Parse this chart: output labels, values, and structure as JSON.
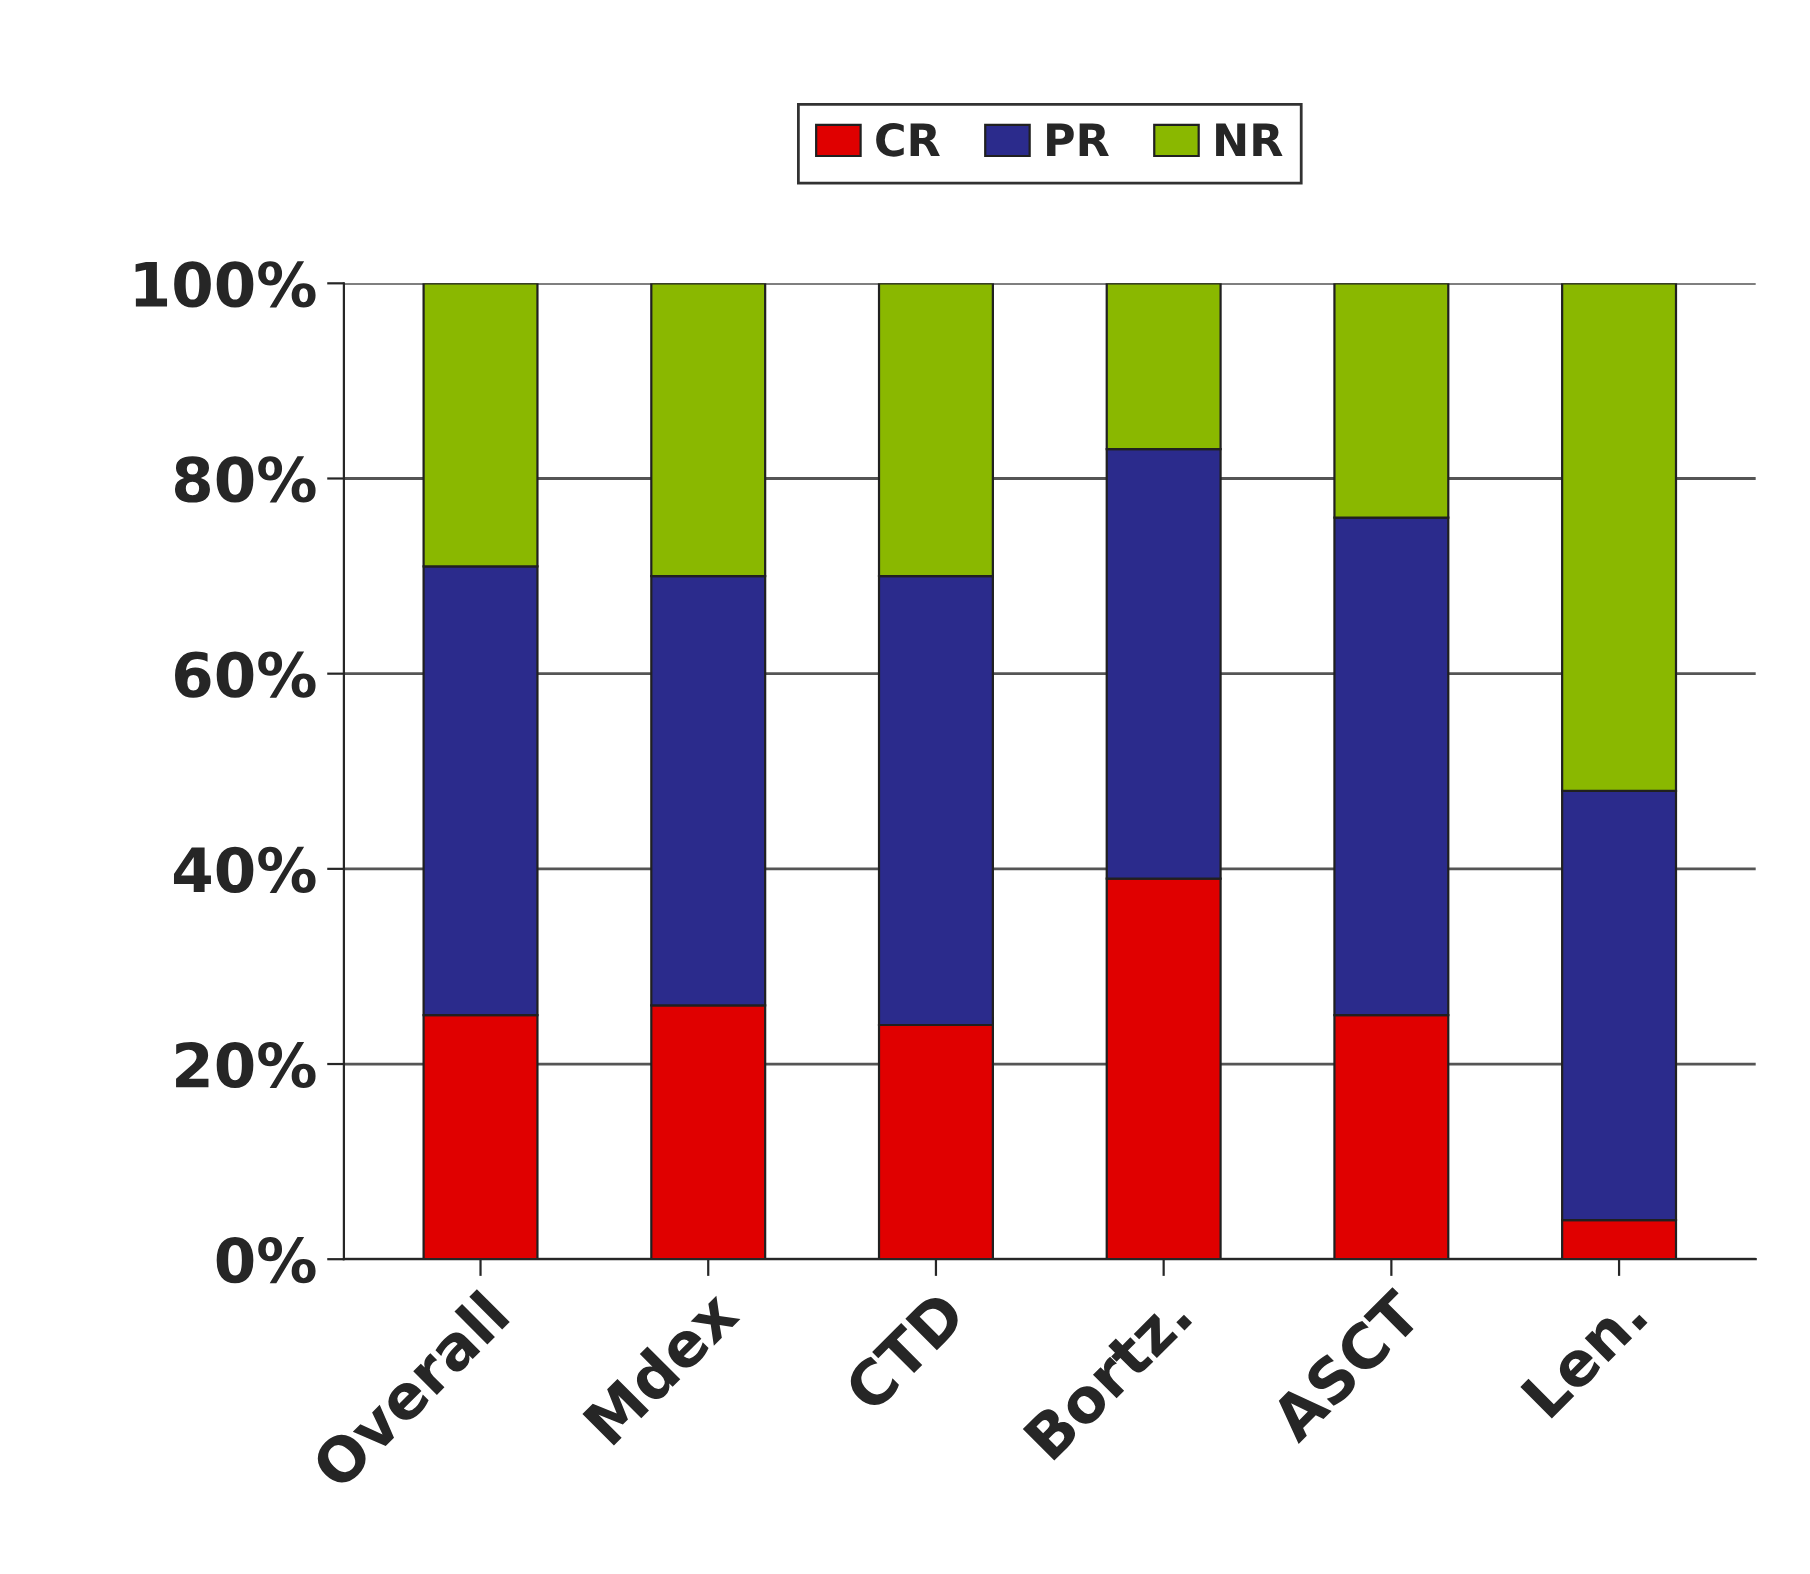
{
  "chart_data": {
    "type": "bar",
    "stacked": true,
    "categories": [
      "Overall",
      "Mdex",
      "CTD",
      "Bortz.",
      "ASCT",
      "Len."
    ],
    "series": [
      {
        "name": "CR",
        "color": "#e00000",
        "values": [
          25,
          26,
          24,
          39,
          25,
          4
        ]
      },
      {
        "name": "PR",
        "color": "#2b2b8c",
        "values": [
          46,
          44,
          46,
          44,
          51,
          44
        ]
      },
      {
        "name": "NR",
        "color": "#8ab800",
        "values": [
          29,
          30,
          30,
          17,
          24,
          52
        ]
      }
    ],
    "ylim": [
      0,
      100
    ],
    "yticks": [
      {
        "value": 0,
        "label": "0%"
      },
      {
        "value": 20,
        "label": "20%"
      },
      {
        "value": 40,
        "label": "40%"
      },
      {
        "value": 60,
        "label": "60%"
      },
      {
        "value": 80,
        "label": "80%"
      },
      {
        "value": 100,
        "label": "100%"
      }
    ],
    "grid": "y",
    "legend": "top"
  }
}
